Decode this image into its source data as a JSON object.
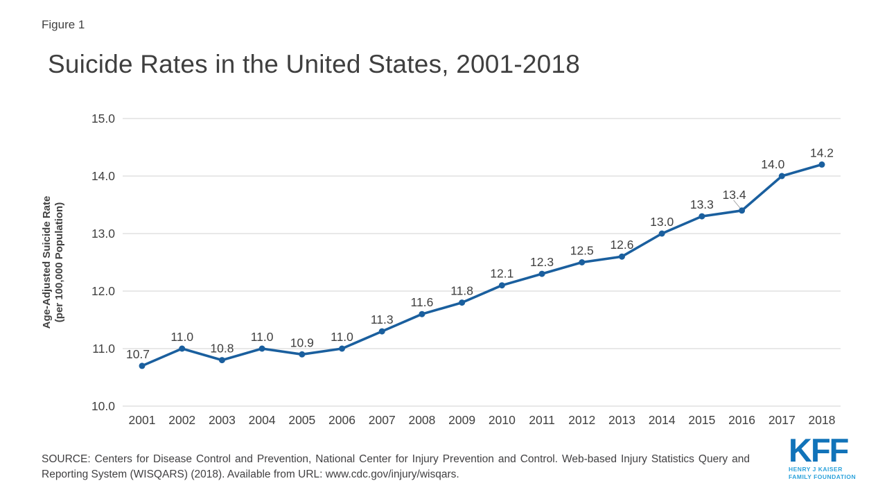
{
  "header": {
    "figure_label": "Figure 1"
  },
  "chart_data": {
    "type": "line",
    "title": "Suicide Rates in the United States, 2001-2018",
    "x": [
      "2001",
      "2002",
      "2003",
      "2004",
      "2005",
      "2006",
      "2007",
      "2008",
      "2009",
      "2010",
      "2011",
      "2012",
      "2013",
      "2014",
      "2015",
      "2016",
      "2017",
      "2018"
    ],
    "values": [
      10.7,
      11.0,
      10.8,
      11.0,
      10.9,
      11.0,
      11.3,
      11.6,
      11.8,
      12.1,
      12.3,
      12.5,
      12.6,
      13.0,
      13.3,
      13.4,
      14.0,
      14.2
    ],
    "data_labels": [
      "10.7",
      "11.0",
      "10.8",
      "11.0",
      "10.9",
      "11.0",
      "11.3",
      "11.6",
      "11.8",
      "12.1",
      "12.3",
      "12.5",
      "12.6",
      "13.0",
      "13.3",
      "13.4",
      "14.0",
      "14.2"
    ],
    "ylabel_line1": "Age-Adjusted Suicide Rate",
    "ylabel_line2": "(per 100,000 Population)",
    "xlabel": "",
    "ylim": [
      10,
      15
    ],
    "ytick_labels": [
      "10.0",
      "11.0",
      "12.0",
      "13.0",
      "14.0",
      "15.0"
    ],
    "grid": true,
    "legend": "none",
    "colors": {
      "line": "#1a5f9e",
      "marker": "#1a5f9e",
      "grid": "#d9d9d9",
      "text": "#404040",
      "leader_line": "#a6a6a6"
    }
  },
  "footer": {
    "source_line1": "SOURCE: Centers for Disease Control and Prevention, National Center for Injury Prevention and Control. Web-based Injury Statistics Query and",
    "source_line2": "Reporting System (WISQARS) (2018). Available from URL: www.cdc.gov/injury/wisqars.",
    "logo": {
      "text": "KFF",
      "tagline_line1": "HENRY J KAISER",
      "tagline_line2": "FAMILY FOUNDATION",
      "brand_color": "#1173b9",
      "tagline_color": "#2ba2db"
    }
  }
}
